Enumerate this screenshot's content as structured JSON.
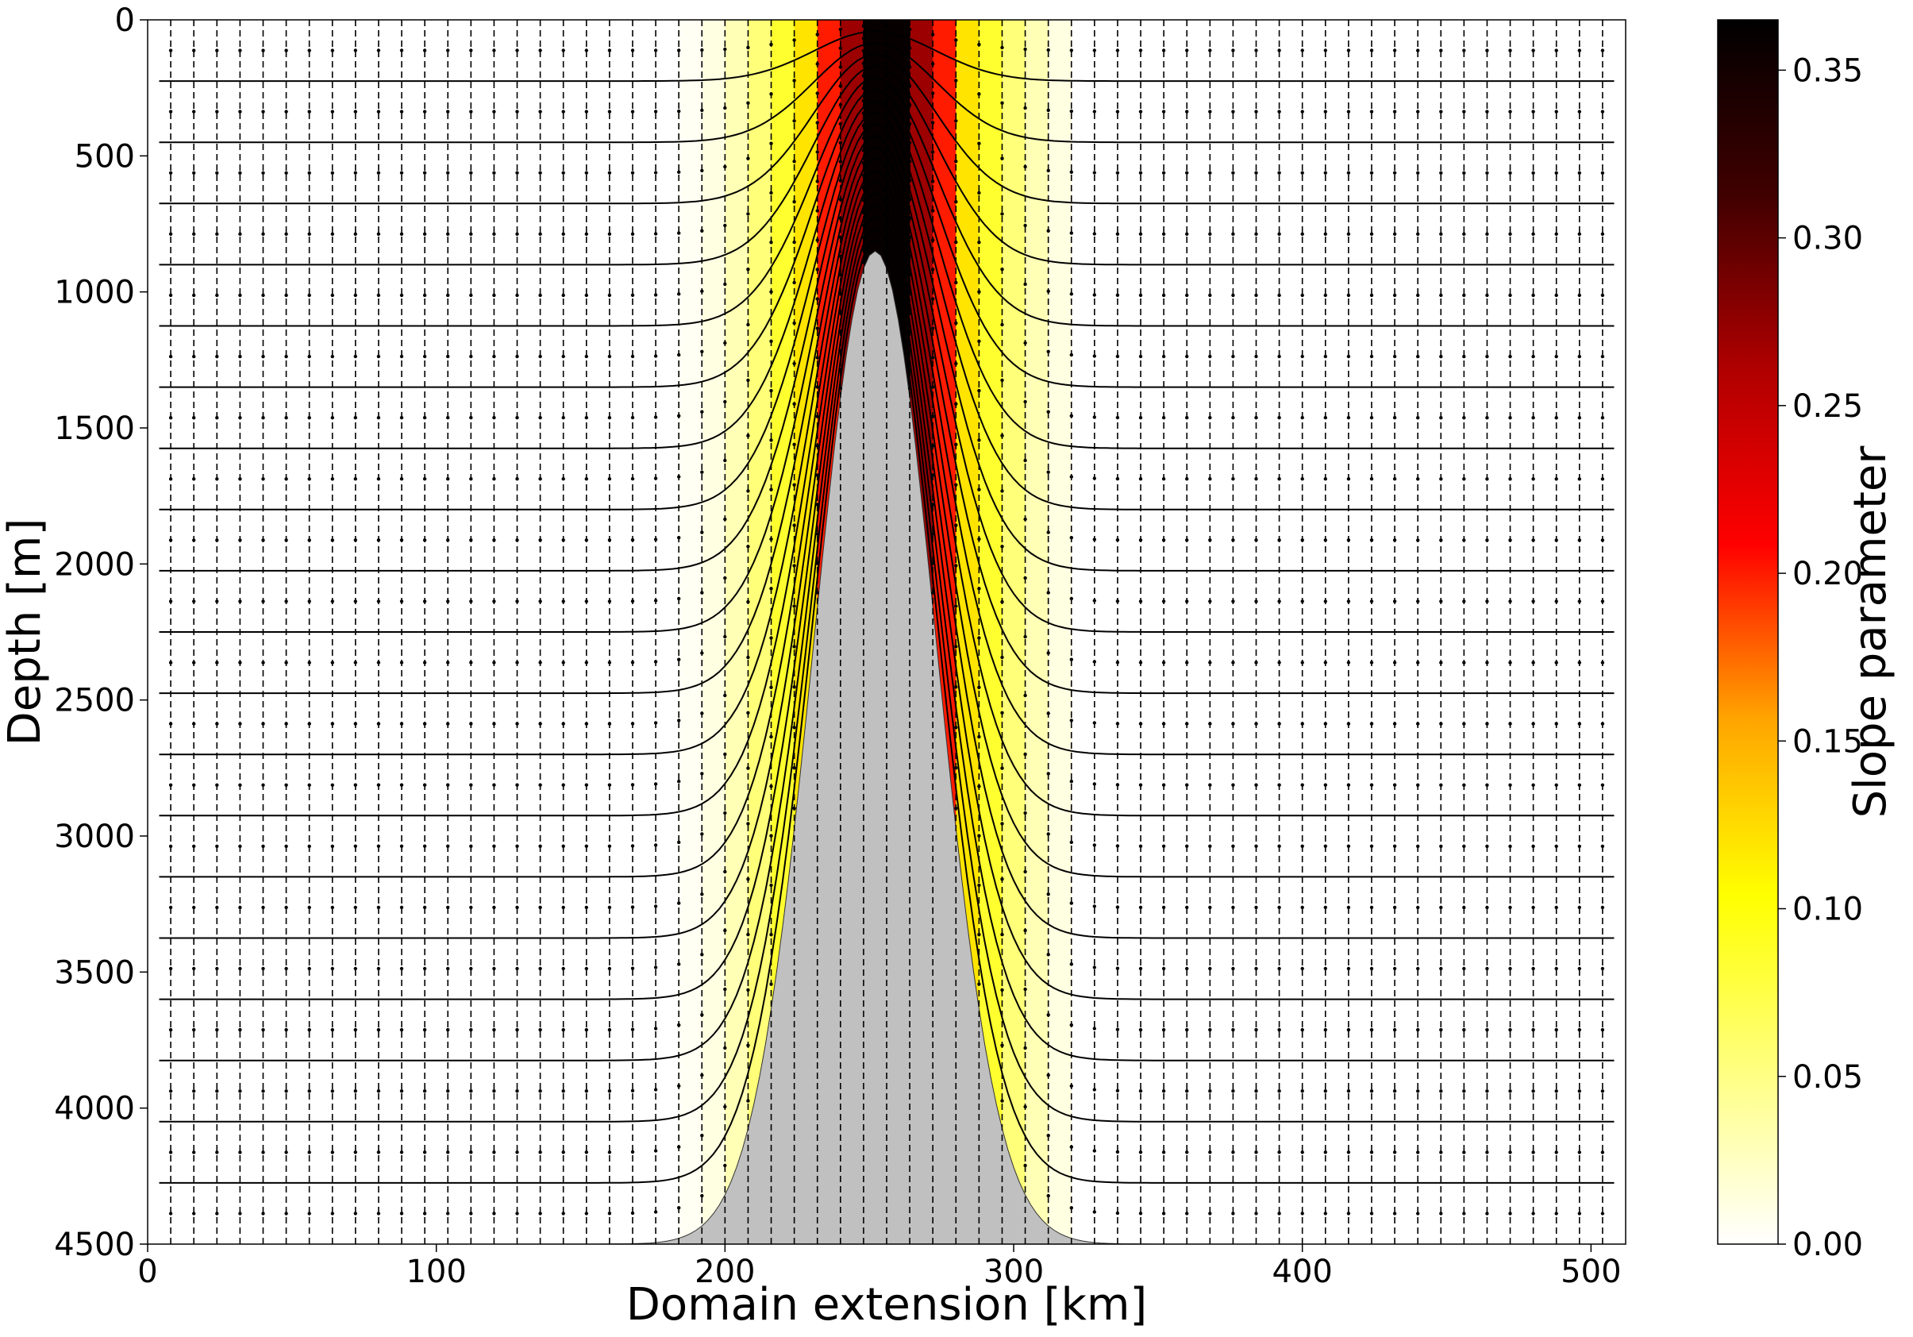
{
  "chart_data": {
    "type": "heatmap",
    "xlabel": "Domain extension [km]",
    "ylabel": "Depth [m]",
    "colorbar_label": "Slope parameter",
    "xlim": [
      0,
      512
    ],
    "ylim": [
      4500,
      0
    ],
    "y_inverted": true,
    "x_ticks": [
      0,
      100,
      200,
      300,
      400,
      500
    ],
    "y_ticks": [
      0,
      500,
      1000,
      1500,
      2000,
      2500,
      3000,
      3500,
      4000,
      4500
    ],
    "colorbar_range": [
      0,
      0.365
    ],
    "colorbar_ticks": [
      "0.00",
      "0.05",
      "0.10",
      "0.15",
      "0.20",
      "0.25",
      "0.30",
      "0.35"
    ],
    "colormap": "hot_r",
    "colormap_stops": [
      "#ffffff",
      "#ffff80",
      "#ffff00",
      "#ffa500",
      "#ff0000",
      "#b00000",
      "#400000",
      "#000000"
    ],
    "seamount": {
      "center_km": 252,
      "peak_depth_m": 850,
      "base_depth_m": 4500,
      "fill_color": "#c0c0c0"
    },
    "grid_columns_km": 8,
    "model_levels": 19,
    "column_slope_values": [
      {
        "x_km": 184,
        "value": 0.005
      },
      {
        "x_km": 192,
        "value": 0.012
      },
      {
        "x_km": 200,
        "value": 0.03
      },
      {
        "x_km": 208,
        "value": 0.055
      },
      {
        "x_km": 216,
        "value": 0.085
      },
      {
        "x_km": 224,
        "value": 0.12
      },
      {
        "x_km": 232,
        "value": 0.2
      },
      {
        "x_km": 240,
        "value": 0.27
      },
      {
        "x_km": 248,
        "value": 0.36
      },
      {
        "x_km": 256,
        "value": 0.36
      },
      {
        "x_km": 264,
        "value": 0.27
      },
      {
        "x_km": 272,
        "value": 0.2
      },
      {
        "x_km": 280,
        "value": 0.12
      },
      {
        "x_km": 288,
        "value": 0.085
      },
      {
        "x_km": 296,
        "value": 0.055
      },
      {
        "x_km": 304,
        "value": 0.03
      },
      {
        "x_km": 312,
        "value": 0.012
      }
    ],
    "grid": true
  }
}
